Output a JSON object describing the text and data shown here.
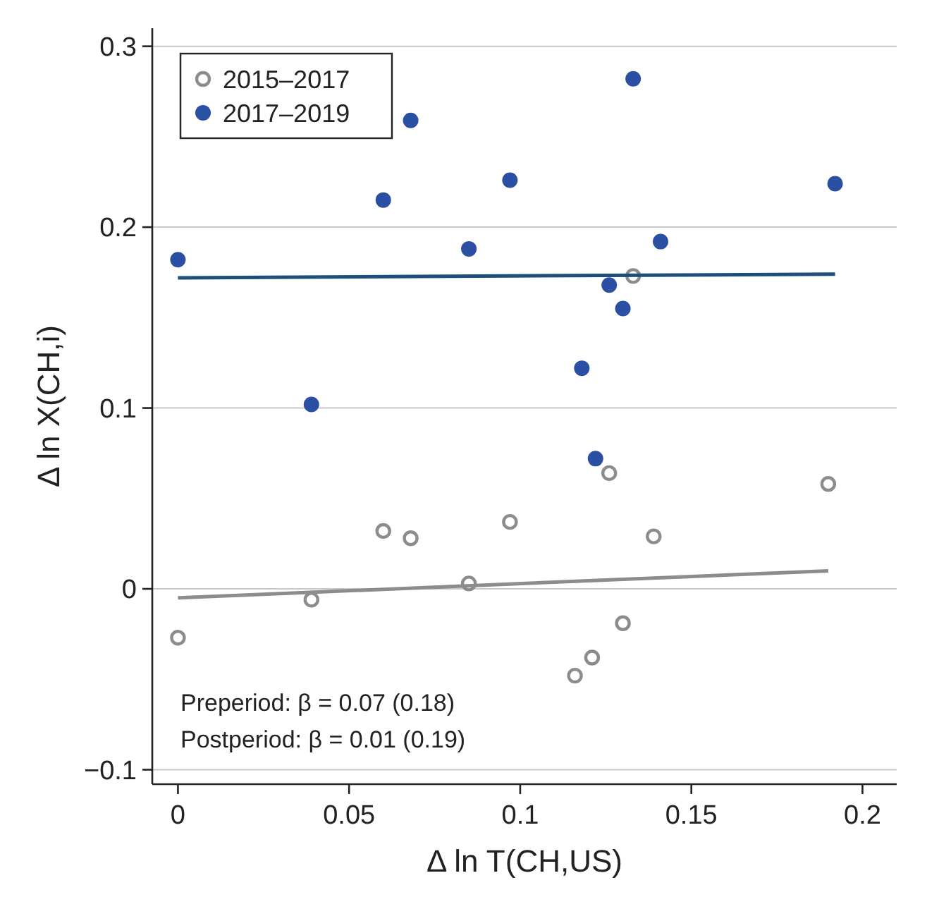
{
  "chart_data": {
    "type": "scatter",
    "xlabel": "Δ ln T(CH,US)",
    "ylabel": "Δ ln X(CH,i)",
    "xlim": [
      -0.0075,
      0.21
    ],
    "ylim": [
      -0.108,
      0.31
    ],
    "xticks": [
      0,
      0.05,
      0.1,
      0.15,
      0.2
    ],
    "yticks": [
      -0.1,
      0,
      0.1,
      0.2,
      0.3
    ],
    "grid": "y",
    "legend": "top left",
    "marker": "circle",
    "annotations": [
      "Preperiod: β = 0.07 (0.18)",
      "Postperiod: β = 0.01 (0.19)"
    ],
    "series": [
      {
        "name": "2015–2017",
        "color": "#8c8c8c",
        "x": [
          0,
          0.039,
          0.06,
          0.068,
          0.085,
          0.097,
          0.116,
          0.121,
          0.126,
          0.13,
          0.133,
          0.139,
          0.19
        ],
        "values": [
          -0.027,
          -0.006,
          0.032,
          0.028,
          0.003,
          0.037,
          -0.048,
          -0.038,
          0.064,
          -0.019,
          0.173,
          0.029,
          0.058
        ]
      },
      {
        "name": "2017–2019",
        "color": "#2b4fa3",
        "x": [
          0,
          0.039,
          0.06,
          0.068,
          0.085,
          0.097,
          0.118,
          0.122,
          0.126,
          0.13,
          0.133,
          0.141,
          0.192
        ],
        "values": [
          0.182,
          0.102,
          0.215,
          0.259,
          0.188,
          0.226,
          0.122,
          0.072,
          0.168,
          0.155,
          0.282,
          0.192,
          0.224
        ]
      },
      {
        "type": "line",
        "marker": "none",
        "color": "#8c8c8c",
        "x": [
          0,
          0.19
        ],
        "values": [
          -0.005,
          0.01
        ]
      },
      {
        "type": "line",
        "marker": "none",
        "color": "#1f4e79",
        "x": [
          0,
          0.192
        ],
        "values": [
          0.172,
          0.174
        ]
      }
    ]
  }
}
